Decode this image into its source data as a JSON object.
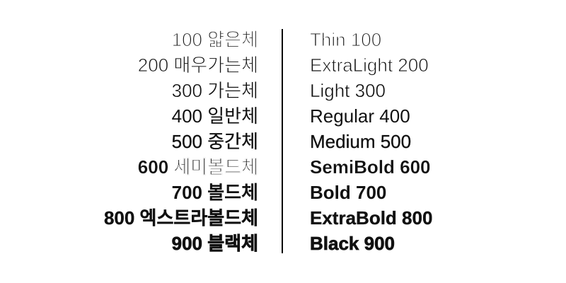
{
  "specimen": {
    "text_color": "#111111",
    "background_color": "#ffffff",
    "divider_color": "#000000",
    "rows": [
      {
        "weight": 100,
        "ko": "100 얇은체",
        "en": "Thin 100"
      },
      {
        "weight": 200,
        "ko": "200 매우가는체",
        "en": "ExtraLight 200"
      },
      {
        "weight": 300,
        "ko": "300 가는체",
        "en": "Light 300"
      },
      {
        "weight": 400,
        "ko": "400 일반체",
        "en": "Regular 400"
      },
      {
        "weight": 500,
        "ko": "500 중간체",
        "en": "Medium 500"
      },
      {
        "weight": 600,
        "ko": "600 세미볼드체",
        "en": "SemiBold 600"
      },
      {
        "weight": 700,
        "ko": "700 볼드체",
        "en": "Bold 700"
      },
      {
        "weight": 800,
        "ko": "800 엑스트라볼드체",
        "en": "ExtraBold 800"
      },
      {
        "weight": 900,
        "ko": "900 블랙체",
        "en": "Black 900"
      }
    ]
  }
}
